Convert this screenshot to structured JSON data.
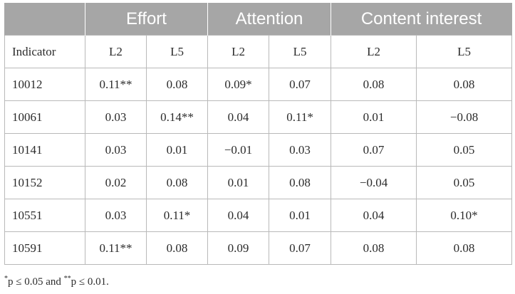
{
  "table": {
    "group_headers": [
      "",
      "Effort",
      "Attention",
      "Content interest"
    ],
    "sub_headers": [
      "Indicator",
      "L2",
      "L5",
      "L2",
      "L5",
      "L2",
      "L5"
    ],
    "rows": [
      [
        "10012",
        "0.11**",
        "0.08",
        "0.09*",
        "0.07",
        "0.08",
        "0.08"
      ],
      [
        "10061",
        "0.03",
        "0.14**",
        "0.04",
        "0.11*",
        "0.01",
        "−0.08"
      ],
      [
        "10141",
        "0.03",
        "0.01",
        "−0.01",
        "0.03",
        "0.07",
        "0.05"
      ],
      [
        "10152",
        "0.02",
        "0.08",
        "0.01",
        "0.08",
        "−0.04",
        "0.05"
      ],
      [
        "10551",
        "0.03",
        "0.11*",
        "0.04",
        "0.01",
        "0.04",
        "0.10*"
      ],
      [
        "10591",
        "0.11**",
        "0.08",
        "0.09",
        "0.07",
        "0.08",
        "0.08"
      ]
    ]
  },
  "footnote": {
    "sup1": "*",
    "text1": "p ≤ 0.05 and ",
    "sup2": "**",
    "text2": "p ≤ 0.01."
  }
}
